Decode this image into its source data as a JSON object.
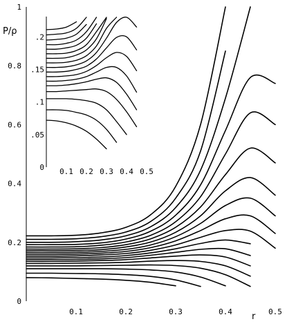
{
  "chart_data": [
    {
      "type": "line",
      "title": "",
      "xlabel": "r",
      "ylabel": "P/ρ",
      "xlim": [
        0,
        0.5
      ],
      "ylim": [
        0,
        1
      ],
      "x_ticks": [
        "0.1",
        "0.2",
        "0.3",
        "0.4",
        "0.5"
      ],
      "y_ticks": [
        "0",
        "0.2",
        "0.4",
        "0.6",
        "0.8",
        "1"
      ],
      "x": [
        0,
        0.05,
        0.1,
        0.15,
        0.2,
        0.25,
        0.3,
        0.35,
        0.4,
        0.45,
        0.5
      ],
      "grid": false,
      "series": [
        {
          "values": [
            0.08,
            0.079,
            0.077,
            0.075,
            0.071,
            0.064,
            0.052,
            null,
            null,
            null,
            null
          ]
        },
        {
          "values": [
            0.095,
            0.095,
            0.094,
            0.093,
            0.09,
            0.084,
            0.072,
            0.05,
            null,
            null,
            null
          ]
        },
        {
          "values": [
            0.11,
            0.11,
            0.11,
            0.11,
            0.109,
            0.106,
            0.099,
            0.082,
            0.052,
            null,
            null
          ]
        },
        {
          "values": [
            0.12,
            0.12,
            0.12,
            0.121,
            0.122,
            0.123,
            0.121,
            0.112,
            0.09,
            0.05,
            null
          ]
        },
        {
          "values": [
            0.128,
            0.128,
            0.129,
            0.13,
            0.132,
            0.136,
            0.138,
            0.135,
            0.12,
            0.085,
            null
          ]
        },
        {
          "values": [
            0.135,
            0.135,
            0.136,
            0.138,
            0.141,
            0.147,
            0.153,
            0.157,
            0.15,
            0.12,
            null
          ]
        },
        {
          "values": [
            0.141,
            0.141,
            0.142,
            0.144,
            0.148,
            0.156,
            0.166,
            0.176,
            0.178,
            0.155,
            null
          ]
        },
        {
          "values": [
            0.147,
            0.147,
            0.148,
            0.15,
            0.155,
            0.164,
            0.178,
            0.196,
            0.208,
            0.195,
            null
          ]
        },
        {
          "values": [
            0.153,
            0.153,
            0.154,
            0.157,
            0.162,
            0.173,
            0.191,
            0.217,
            0.24,
            0.238,
            0.18
          ]
        },
        {
          "values": [
            0.159,
            0.159,
            0.16,
            0.163,
            0.169,
            0.182,
            0.205,
            0.24,
            0.28,
            0.29,
            0.23
          ]
        },
        {
          "values": [
            0.165,
            0.165,
            0.166,
            0.169,
            0.176,
            0.191,
            0.219,
            0.264,
            0.325,
            0.35,
            0.29
          ]
        },
        {
          "values": [
            0.171,
            0.171,
            0.172,
            0.175,
            0.184,
            0.201,
            0.234,
            0.29,
            0.375,
            0.42,
            0.36
          ]
        },
        {
          "values": [
            0.177,
            0.177,
            0.178,
            0.182,
            0.192,
            0.212,
            0.251,
            0.32,
            0.43,
            0.52,
            0.47
          ]
        },
        {
          "values": [
            0.184,
            0.184,
            0.185,
            0.19,
            0.201,
            0.224,
            0.27,
            0.355,
            0.5,
            0.64,
            0.6
          ]
        },
        {
          "values": [
            0.192,
            0.192,
            0.193,
            0.198,
            0.211,
            0.238,
            0.292,
            0.395,
            0.58,
            0.76,
            0.74
          ]
        },
        {
          "values": [
            0.2,
            0.2,
            0.202,
            0.208,
            0.222,
            0.253,
            0.318,
            0.445,
            0.69,
            1.0,
            null
          ]
        },
        {
          "values": [
            0.21,
            0.21,
            0.212,
            0.219,
            0.235,
            0.271,
            0.35,
            0.51,
            0.85,
            null,
            null
          ]
        },
        {
          "values": [
            0.222,
            0.222,
            0.224,
            0.232,
            0.251,
            0.294,
            0.39,
            0.6,
            1.0,
            null,
            null
          ]
        }
      ]
    },
    {
      "type": "line",
      "title": "",
      "xlabel": "",
      "ylabel": "",
      "xlim": [
        0,
        0.5
      ],
      "ylim": [
        0,
        0.23
      ],
      "x_ticks": [
        "0.1",
        "0.2",
        "0.3",
        "0.4",
        "0.5"
      ],
      "y_ticks": [
        "0",
        ".05",
        ".1",
        ".15",
        ".2"
      ],
      "x": [
        0,
        0.05,
        0.1,
        0.15,
        0.2,
        0.25,
        0.3,
        0.35,
        0.4,
        0.45,
        0.5
      ],
      "grid": false,
      "series": [
        {
          "values": [
            0.072,
            0.071,
            0.068,
            0.063,
            0.055,
            0.043,
            0.028,
            null,
            null,
            null,
            null
          ]
        },
        {
          "values": [
            0.088,
            0.088,
            0.087,
            0.084,
            0.08,
            0.072,
            0.058,
            0.038,
            null,
            null,
            null
          ]
        },
        {
          "values": [
            0.105,
            0.105,
            0.105,
            0.104,
            0.102,
            0.098,
            0.088,
            0.07,
            0.05,
            null,
            null
          ]
        },
        {
          "values": [
            0.116,
            0.116,
            0.117,
            0.118,
            0.119,
            0.12,
            0.116,
            0.104,
            0.085,
            0.062,
            null
          ]
        },
        {
          "values": [
            0.125,
            0.125,
            0.126,
            0.128,
            0.131,
            0.135,
            0.137,
            0.13,
            0.112,
            0.088,
            null
          ]
        },
        {
          "values": [
            0.132,
            0.132,
            0.133,
            0.135,
            0.139,
            0.146,
            0.153,
            0.153,
            0.14,
            0.115,
            null
          ]
        },
        {
          "values": [
            0.139,
            0.139,
            0.14,
            0.142,
            0.147,
            0.156,
            0.168,
            0.176,
            0.17,
            0.148,
            null
          ]
        },
        {
          "values": [
            0.146,
            0.146,
            0.147,
            0.15,
            0.155,
            0.166,
            0.183,
            0.199,
            0.2,
            0.18,
            null
          ]
        },
        {
          "values": [
            0.153,
            0.153,
            0.154,
            0.157,
            0.163,
            0.176,
            0.198,
            0.222,
            0.23,
            0.215,
            null
          ]
        },
        {
          "values": [
            0.16,
            0.16,
            0.161,
            0.164,
            0.171,
            0.186,
            0.213,
            0.235,
            null,
            null,
            null
          ]
        },
        {
          "values": [
            0.167,
            0.167,
            0.168,
            0.172,
            0.18,
            0.197,
            0.228,
            null,
            null,
            null,
            null
          ]
        },
        {
          "values": [
            0.174,
            0.174,
            0.175,
            0.179,
            0.188,
            0.208,
            0.235,
            null,
            null,
            null,
            null
          ]
        },
        {
          "values": [
            0.181,
            0.181,
            0.183,
            0.187,
            0.198,
            0.22,
            null,
            null,
            null,
            null,
            null
          ]
        },
        {
          "values": [
            0.188,
            0.188,
            0.19,
            0.195,
            0.208,
            0.232,
            null,
            null,
            null,
            null,
            null
          ]
        },
        {
          "values": [
            0.195,
            0.196,
            0.198,
            0.204,
            0.219,
            null,
            null,
            null,
            null,
            null,
            null
          ]
        },
        {
          "values": [
            0.203,
            0.204,
            0.206,
            0.213,
            0.231,
            null,
            null,
            null,
            null,
            null,
            null
          ]
        },
        {
          "values": [
            0.211,
            0.212,
            0.215,
            0.223,
            null,
            null,
            null,
            null,
            null,
            null,
            null
          ]
        }
      ]
    }
  ]
}
